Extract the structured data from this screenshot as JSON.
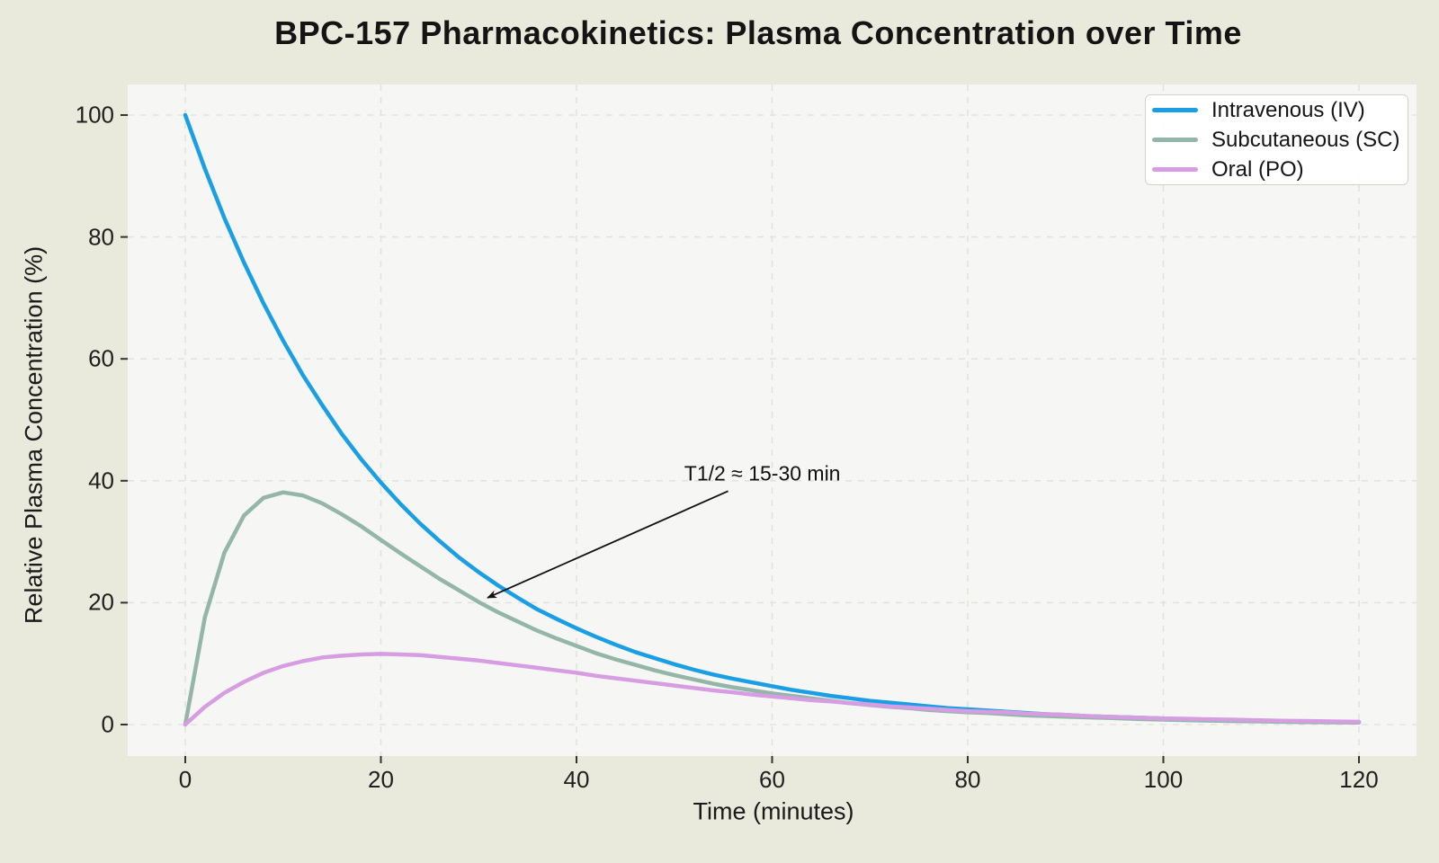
{
  "figure": {
    "background_color": "#e9e9dc",
    "plot_background_color": "#f6f7f5",
    "grid_color": "#e3e3de",
    "tick_color": "#333333"
  },
  "chart_data": {
    "type": "line",
    "title": "BPC-157 Pharmacokinetics: Plasma Concentration over Time",
    "xlabel": "Time (minutes)",
    "ylabel": "Relative Plasma Concentration (%)",
    "xlim": [
      -6,
      126
    ],
    "ylim": [
      -6,
      106
    ],
    "xticks": [
      0,
      20,
      40,
      60,
      80,
      100,
      120
    ],
    "yticks": [
      0,
      20,
      40,
      60,
      80,
      100
    ],
    "grid": true,
    "grid_style": "dashed",
    "legend_position": "upper right",
    "x": [
      0,
      2,
      4,
      6,
      8,
      10,
      12,
      14,
      16,
      18,
      20,
      22,
      24,
      26,
      28,
      30,
      32,
      34,
      36,
      38,
      40,
      42,
      44,
      46,
      48,
      50,
      52,
      54,
      56,
      58,
      60,
      62,
      64,
      66,
      68,
      70,
      72,
      74,
      76,
      78,
      80,
      82,
      84,
      86,
      88,
      90,
      92,
      94,
      96,
      98,
      100,
      102,
      104,
      106,
      108,
      110,
      112,
      114,
      116,
      118,
      120
    ],
    "series": [
      {
        "name": "Intravenous (IV)",
        "color": "#1b9fe4",
        "values": [
          100,
          91.2,
          83.1,
          75.8,
          69.1,
          63,
          57.4,
          52.4,
          47.7,
          43.5,
          39.7,
          36.2,
          33,
          30.1,
          27.4,
          25,
          22.8,
          20.8,
          18.9,
          17.3,
          15.8,
          14.4,
          13.1,
          11.9,
          10.9,
          9.9,
          9,
          8.2,
          7.5,
          6.9,
          6.3,
          5.7,
          5.2,
          4.7,
          4.3,
          3.9,
          3.6,
          3.3,
          3,
          2.7,
          2.5,
          2.3,
          2.1,
          1.9,
          1.7,
          1.6,
          1.4,
          1.3,
          1.2,
          1.1,
          1,
          0.9,
          0.82,
          0.75,
          0.68,
          0.62,
          0.57,
          0.52,
          0.47,
          0.43,
          0.39
        ]
      },
      {
        "name": "Subcutaneous (SC)",
        "color": "#94b6a8",
        "values": [
          0,
          17.6,
          28.2,
          34.3,
          37.2,
          38.1,
          37.6,
          36.3,
          34.5,
          32.5,
          30.3,
          28.1,
          26,
          23.9,
          22,
          20.1,
          18.4,
          16.9,
          15.4,
          14.1,
          12.9,
          11.7,
          10.7,
          9.8,
          8.9,
          8.1,
          7.4,
          6.7,
          6.1,
          5.6,
          5.1,
          4.7,
          4.3,
          3.9,
          3.5,
          3.2,
          2.9,
          2.7,
          2.4,
          2.2,
          2,
          1.9,
          1.7,
          1.5,
          1.4,
          1.3,
          1.2,
          1.1,
          1,
          0.89,
          0.81,
          0.74,
          0.67,
          0.61,
          0.56,
          0.51,
          0.46,
          0.42,
          0.39,
          0.35,
          0.32
        ]
      },
      {
        "name": "Oral (PO)",
        "color": "#d79de2",
        "values": [
          0,
          2.9,
          5.2,
          7,
          8.5,
          9.6,
          10.4,
          11,
          11.3,
          11.5,
          11.6,
          11.5,
          11.4,
          11.1,
          10.8,
          10.5,
          10.1,
          9.7,
          9.3,
          8.9,
          8.5,
          8,
          7.6,
          7.2,
          6.8,
          6.4,
          6,
          5.6,
          5.3,
          4.9,
          4.6,
          4.3,
          4,
          3.8,
          3.5,
          3.3,
          3,
          2.8,
          2.6,
          2.4,
          2.2,
          2.1,
          2,
          1.8,
          1.7,
          1.6,
          1.4,
          1.3,
          1.2,
          1.1,
          1,
          0.96,
          0.89,
          0.82,
          0.76,
          0.7,
          0.64,
          0.59,
          0.54,
          0.5,
          0.46
        ]
      }
    ],
    "annotation": {
      "text": "T1/2 ≈ 15-30 min",
      "arrow_point_data": [
        30.9,
        20.8
      ],
      "arrow_start_data": [
        55.5,
        38.3
      ],
      "text_center_data": [
        59.0,
        41.2
      ],
      "arrow_color": "#111111"
    }
  }
}
